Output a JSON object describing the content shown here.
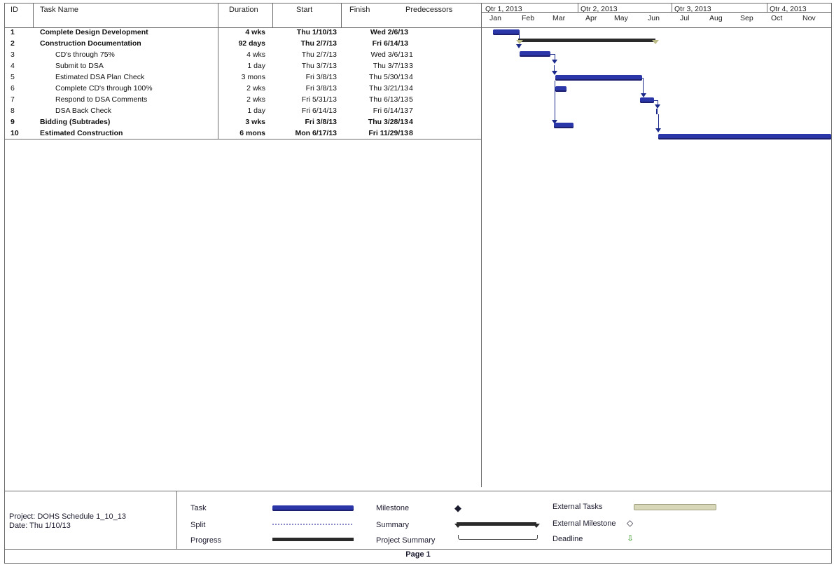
{
  "columns": {
    "id": "ID",
    "name": "Task Name",
    "duration": "Duration",
    "start": "Start",
    "finish": "Finish",
    "pred": "Predecessors"
  },
  "timescale": {
    "quarters": [
      "Qtr 1, 2013",
      "Qtr 2, 2013",
      "Qtr 3, 2013",
      "Qtr 4, 2013"
    ],
    "months": [
      "Jan",
      "Feb",
      "Mar",
      "Apr",
      "May",
      "Jun",
      "Jul",
      "Aug",
      "Sep",
      "Oct",
      "Nov"
    ]
  },
  "tasks": [
    {
      "id": "1",
      "name": "Complete Design Development",
      "duration": "4 wks",
      "start": "Thu 1/10/13",
      "finish": "Wed 2/6/13",
      "pred": "",
      "bold": true,
      "indent": 0
    },
    {
      "id": "2",
      "name": "Construction Documentation",
      "duration": "92 days",
      "start": "Thu 2/7/13",
      "finish": "Fri 6/14/13",
      "pred": "",
      "bold": true,
      "indent": 0
    },
    {
      "id": "3",
      "name": "CD's through 75%",
      "duration": "4 wks",
      "start": "Thu 2/7/13",
      "finish": "Wed 3/6/13",
      "pred": "1",
      "bold": false,
      "indent": 1
    },
    {
      "id": "4",
      "name": "Submit to DSA",
      "duration": "1 day",
      "start": "Thu 3/7/13",
      "finish": "Thu 3/7/13",
      "pred": "3",
      "bold": false,
      "indent": 1
    },
    {
      "id": "5",
      "name": "Estimated DSA Plan Check",
      "duration": "3 mons",
      "start": "Fri 3/8/13",
      "finish": "Thu 5/30/13",
      "pred": "4",
      "bold": false,
      "indent": 1
    },
    {
      "id": "6",
      "name": "Complete CD's through 100%",
      "duration": "2 wks",
      "start": "Fri 3/8/13",
      "finish": "Thu 3/21/13",
      "pred": "4",
      "bold": false,
      "indent": 1
    },
    {
      "id": "7",
      "name": "Respond to DSA Comments",
      "duration": "2 wks",
      "start": "Fri 5/31/13",
      "finish": "Thu 6/13/13",
      "pred": "5",
      "bold": false,
      "indent": 1
    },
    {
      "id": "8",
      "name": "DSA Back Check",
      "duration": "1 day",
      "start": "Fri 6/14/13",
      "finish": "Fri 6/14/13",
      "pred": "7",
      "bold": false,
      "indent": 1
    },
    {
      "id": "9",
      "name": "Bidding (Subtrades)",
      "duration": "3 wks",
      "start": "Fri 3/8/13",
      "finish": "Thu 3/28/13",
      "pred": "4",
      "bold": true,
      "indent": 0
    },
    {
      "id": "10",
      "name": "Estimated Construction",
      "duration": "6 mons",
      "start": "Mon 6/17/13",
      "finish": "Fri 11/29/13",
      "pred": "8",
      "bold": true,
      "indent": 0
    }
  ],
  "legend": {
    "project": "Project: DOHS Schedule 1_10_13",
    "date": "Date: Thu 1/10/13",
    "task": "Task",
    "split": "Split",
    "progress": "Progress",
    "milestone": "Milestone",
    "summary": "Summary",
    "project_summary": "Project Summary",
    "external_tasks": "External Tasks",
    "external_milestone": "External Milestone",
    "deadline": "Deadline"
  },
  "footer": "Page 1",
  "colors": {
    "task": "#2b36a8",
    "summary": "#2a2a2a",
    "external": "#d8d8b8",
    "deadline": "#3a9a2a"
  }
}
